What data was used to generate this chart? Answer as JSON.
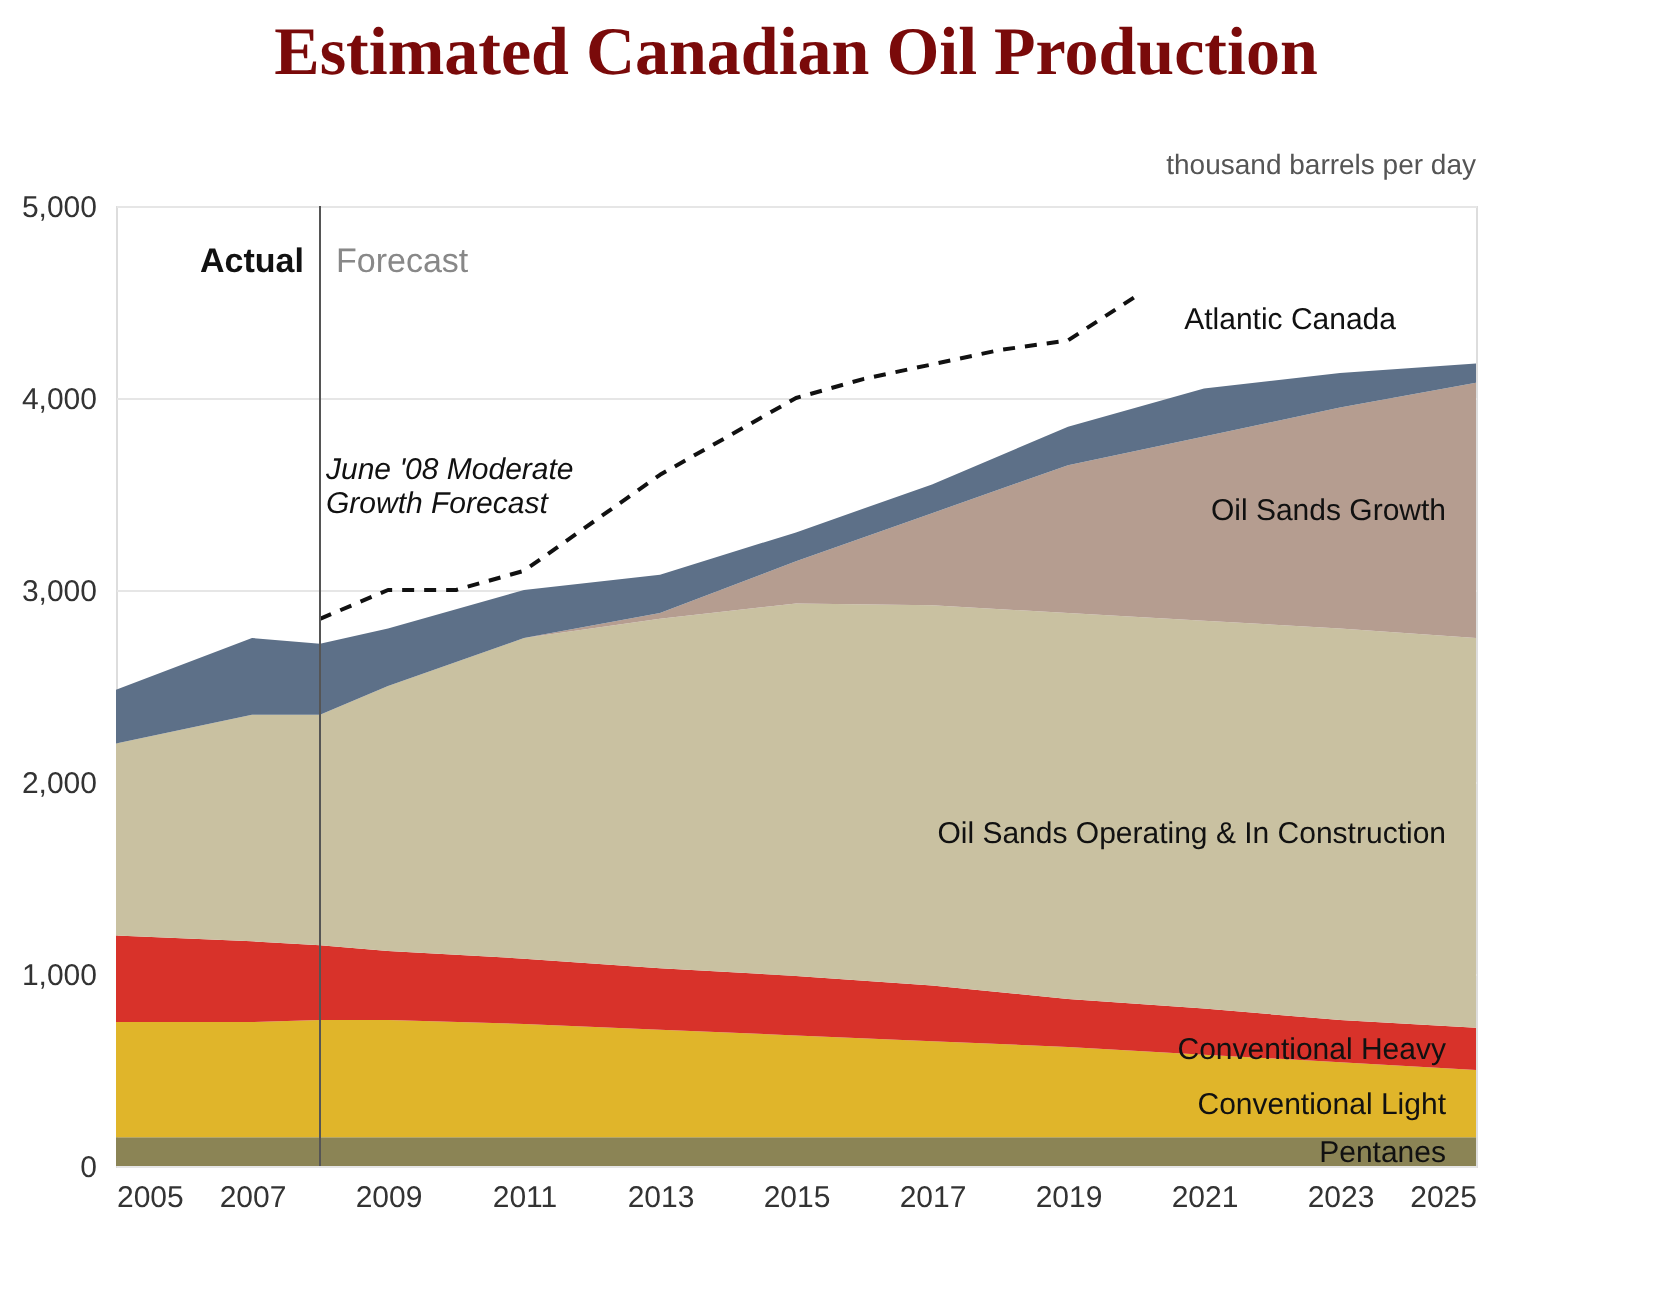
{
  "chart_data": {
    "type": "area",
    "title": "Estimated Canadian Oil Production",
    "stacked": true,
    "grid": "y",
    "x": [
      2005,
      2007,
      2008,
      2009,
      2011,
      2013,
      2015,
      2017,
      2019,
      2021,
      2023,
      2025
    ],
    "xlim": [
      2005,
      2025
    ],
    "xticks": [
      2005,
      2007,
      2009,
      2011,
      2013,
      2015,
      2017,
      2019,
      2021,
      2023,
      2025
    ],
    "ylim": [
      0,
      5000
    ],
    "yticks": [
      0,
      {
        "value": 1000,
        "label": "1,000"
      },
      {
        "value": 2000,
        "label": "2,000"
      },
      {
        "value": 3000,
        "label": "3,000"
      },
      {
        "value": 4000,
        "label": "4,000"
      },
      {
        "value": 5000,
        "label": "5,000"
      }
    ],
    "series": [
      {
        "name": "Pentanes",
        "color": "#8b8455",
        "values": [
          150,
          150,
          150,
          150,
          150,
          150,
          150,
          150,
          150,
          150,
          150,
          150
        ]
      },
      {
        "name": "Conventional Light",
        "color": "#e0b52a",
        "values": [
          600,
          600,
          610,
          610,
          590,
          560,
          530,
          500,
          470,
          430,
          390,
          350
        ]
      },
      {
        "name": "Conventional Heavy",
        "color": "#d8322a",
        "values": [
          450,
          420,
          390,
          360,
          340,
          320,
          310,
          290,
          250,
          240,
          220,
          220
        ]
      },
      {
        "name": "Oil Sands Operating & In Construction",
        "color": "#c9c1a1",
        "values": [
          1000,
          1180,
          1200,
          1380,
          1670,
          1820,
          1940,
          1980,
          2010,
          2020,
          2040,
          2030
        ]
      },
      {
        "name": "Oil Sands Growth",
        "color": "#b59d90",
        "values": [
          0,
          0,
          0,
          0,
          0,
          30,
          220,
          480,
          770,
          960,
          1150,
          1330
        ]
      },
      {
        "name": "Atlantic Canada",
        "color": "#5d7088",
        "values": [
          280,
          400,
          370,
          300,
          250,
          200,
          150,
          150,
          200,
          250,
          180,
          100
        ]
      },
      {
        "name": "June '08 Moderate Growth Forecast",
        "type": "line",
        "line_style": "dashed",
        "color": "#111111",
        "x": [
          2008,
          2009,
          2010,
          2011,
          2013,
          2015,
          2016,
          2018,
          2019,
          2020
        ],
        "values": [
          2850,
          3000,
          3000,
          3100,
          3600,
          4000,
          4100,
          4250,
          4300,
          4530
        ]
      }
    ],
    "ref_lines": [
      {
        "axis": "x",
        "value": 2008,
        "color": "#555555"
      }
    ],
    "annotations": [
      "Actual",
      "Forecast",
      "thousand barrels per day"
    ]
  }
}
